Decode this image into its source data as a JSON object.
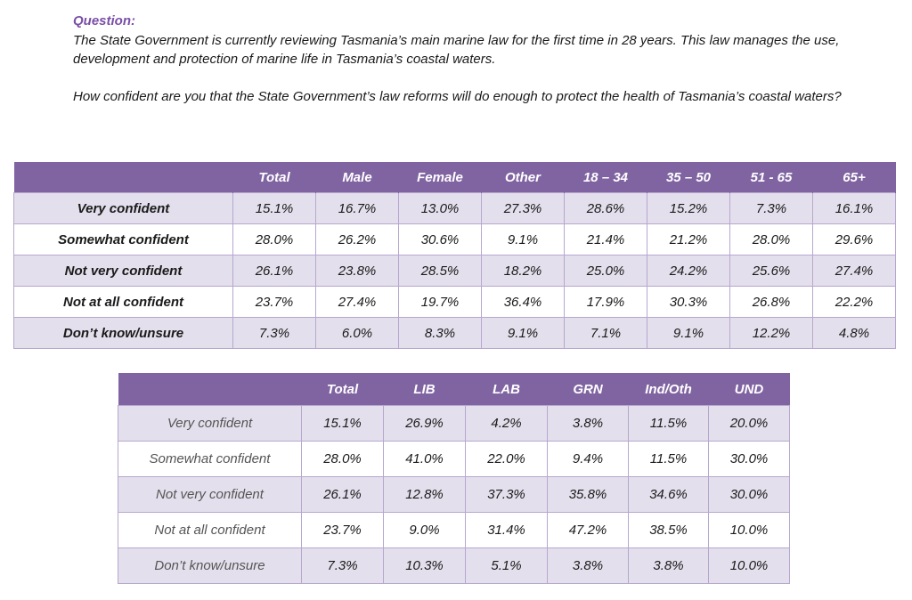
{
  "question": {
    "label": "Question:",
    "paragraph1": "The State Government is currently reviewing Tasmania’s main marine law for the first time in 28 years. This law manages the use, development and protection of marine life in Tasmania’s coastal waters.",
    "paragraph2": "How confident are you that the State Government’s law reforms will do enough to protect the health of Tasmania’s coastal waters?"
  },
  "colors": {
    "header_bg": "#8064a2",
    "odd_row_bg": "#e4dfec",
    "accent_text": "#7b4fa6"
  },
  "table_demographics": {
    "columns": [
      "",
      "Total",
      "Male",
      "Female",
      "Other",
      "18 – 34",
      "35 – 50",
      "51 - 65",
      "65+"
    ],
    "rows": [
      {
        "label": "Very confident",
        "values": [
          "15.1%",
          "16.7%",
          "13.0%",
          "27.3%",
          "28.6%",
          "15.2%",
          "7.3%",
          "16.1%"
        ]
      },
      {
        "label": "Somewhat confident",
        "values": [
          "28.0%",
          "26.2%",
          "30.6%",
          "9.1%",
          "21.4%",
          "21.2%",
          "28.0%",
          "29.6%"
        ]
      },
      {
        "label": "Not very confident",
        "values": [
          "26.1%",
          "23.8%",
          "28.5%",
          "18.2%",
          "25.0%",
          "24.2%",
          "25.6%",
          "27.4%"
        ]
      },
      {
        "label": "Not at all confident",
        "values": [
          "23.7%",
          "27.4%",
          "19.7%",
          "36.4%",
          "17.9%",
          "30.3%",
          "26.8%",
          "22.2%"
        ]
      },
      {
        "label": "Don’t know/unsure",
        "values": [
          "7.3%",
          "6.0%",
          "8.3%",
          "9.1%",
          "7.1%",
          "9.1%",
          "12.2%",
          "4.8%"
        ]
      }
    ]
  },
  "table_voting": {
    "columns": [
      "",
      "Total",
      "LIB",
      "LAB",
      "GRN",
      "Ind/Oth",
      "UND"
    ],
    "rows": [
      {
        "label": "Very confident",
        "values": [
          "15.1%",
          "26.9%",
          "4.2%",
          "3.8%",
          "11.5%",
          "20.0%"
        ]
      },
      {
        "label": "Somewhat confident",
        "values": [
          "28.0%",
          "41.0%",
          "22.0%",
          "9.4%",
          "11.5%",
          "30.0%"
        ]
      },
      {
        "label": "Not very confident",
        "values": [
          "26.1%",
          "12.8%",
          "37.3%",
          "35.8%",
          "34.6%",
          "30.0%"
        ]
      },
      {
        "label": "Not at all confident",
        "values": [
          "23.7%",
          "9.0%",
          "31.4%",
          "47.2%",
          "38.5%",
          "10.0%"
        ]
      },
      {
        "label": "Don’t know/unsure",
        "values": [
          "7.3%",
          "10.3%",
          "5.1%",
          "3.8%",
          "3.8%",
          "10.0%"
        ]
      }
    ]
  }
}
